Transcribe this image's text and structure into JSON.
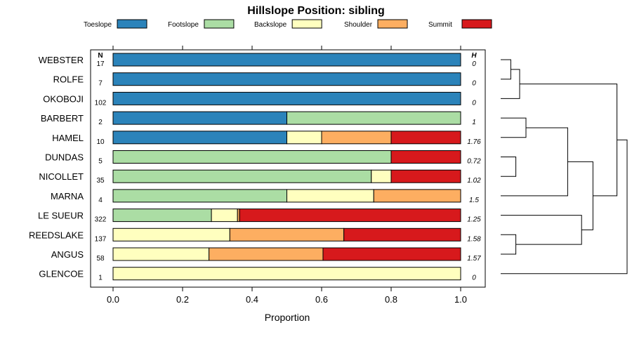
{
  "chart_data": {
    "type": "bar",
    "orientation": "horizontal",
    "stacked": true,
    "title": "Hillslope Position: sibling",
    "xlabel": "Proportion",
    "ylabel": "",
    "xlim": [
      0,
      1
    ],
    "xticks": [
      "0.0",
      "0.2",
      "0.4",
      "0.6",
      "0.8",
      "1.0"
    ],
    "xtick_values": [
      0,
      0.2,
      0.4,
      0.6,
      0.8,
      1.0
    ],
    "legend_position": "top",
    "n_header": "N",
    "h_header": "H",
    "categories": [
      "WEBSTER",
      "ROLFE",
      "OKOBOJI",
      "BARBERT",
      "HAMEL",
      "DUNDAS",
      "NICOLLET",
      "MARNA",
      "LE SUEUR",
      "REEDSLAKE",
      "ANGUS",
      "GLENCOE"
    ],
    "n": [
      "17",
      "7",
      "102",
      "2",
      "10",
      "5",
      "35",
      "4",
      "322",
      "137",
      "58",
      "1"
    ],
    "h": [
      "0",
      "0",
      "0",
      "1",
      "1.76",
      "0.72",
      "1.02",
      "1.5",
      "1.25",
      "1.58",
      "1.57",
      "0"
    ],
    "series": [
      {
        "name": "Toeslope",
        "color": "#2b83ba",
        "values": [
          1,
          1,
          1,
          0.5,
          0.5,
          0,
          0,
          0,
          0,
          0,
          0,
          0
        ]
      },
      {
        "name": "Footslope",
        "color": "#abdda4",
        "values": [
          0,
          0,
          0,
          0.5,
          0,
          0.8,
          0.743,
          0.5,
          0.283,
          0,
          0,
          0
        ]
      },
      {
        "name": "Backslope",
        "color": "#ffffbf",
        "values": [
          0,
          0,
          0,
          0,
          0.1,
          0,
          0.057,
          0.25,
          0.075,
          0.336,
          0.276,
          1
        ]
      },
      {
        "name": "Shoulder",
        "color": "#fdae61",
        "values": [
          0,
          0,
          0,
          0,
          0.2,
          0,
          0,
          0.25,
          0.006,
          0.328,
          0.328,
          0
        ]
      },
      {
        "name": "Summit",
        "color": "#d7191c",
        "values": [
          0,
          0,
          0,
          0,
          0.2,
          0.2,
          0.2,
          0,
          0.636,
          0.336,
          0.396,
          0
        ]
      }
    ],
    "dendrogram": {
      "merges": [
        [
          0,
          1
        ],
        [
          3,
          4
        ],
        [
          5,
          6
        ],
        [
          9,
          10
        ],
        [
          -1,
          2
        ],
        [
          -2,
          7
        ],
        [
          -4,
          8
        ],
        [
          -6,
          -7
        ],
        [
          -5,
          -8
        ],
        [
          -9,
          11
        ]
      ],
      "heights": [
        0.08,
        0.2,
        0.12,
        0.12,
        0.15,
        0.53,
        0.64,
        0.73,
        0.92,
        1.0
      ]
    }
  }
}
